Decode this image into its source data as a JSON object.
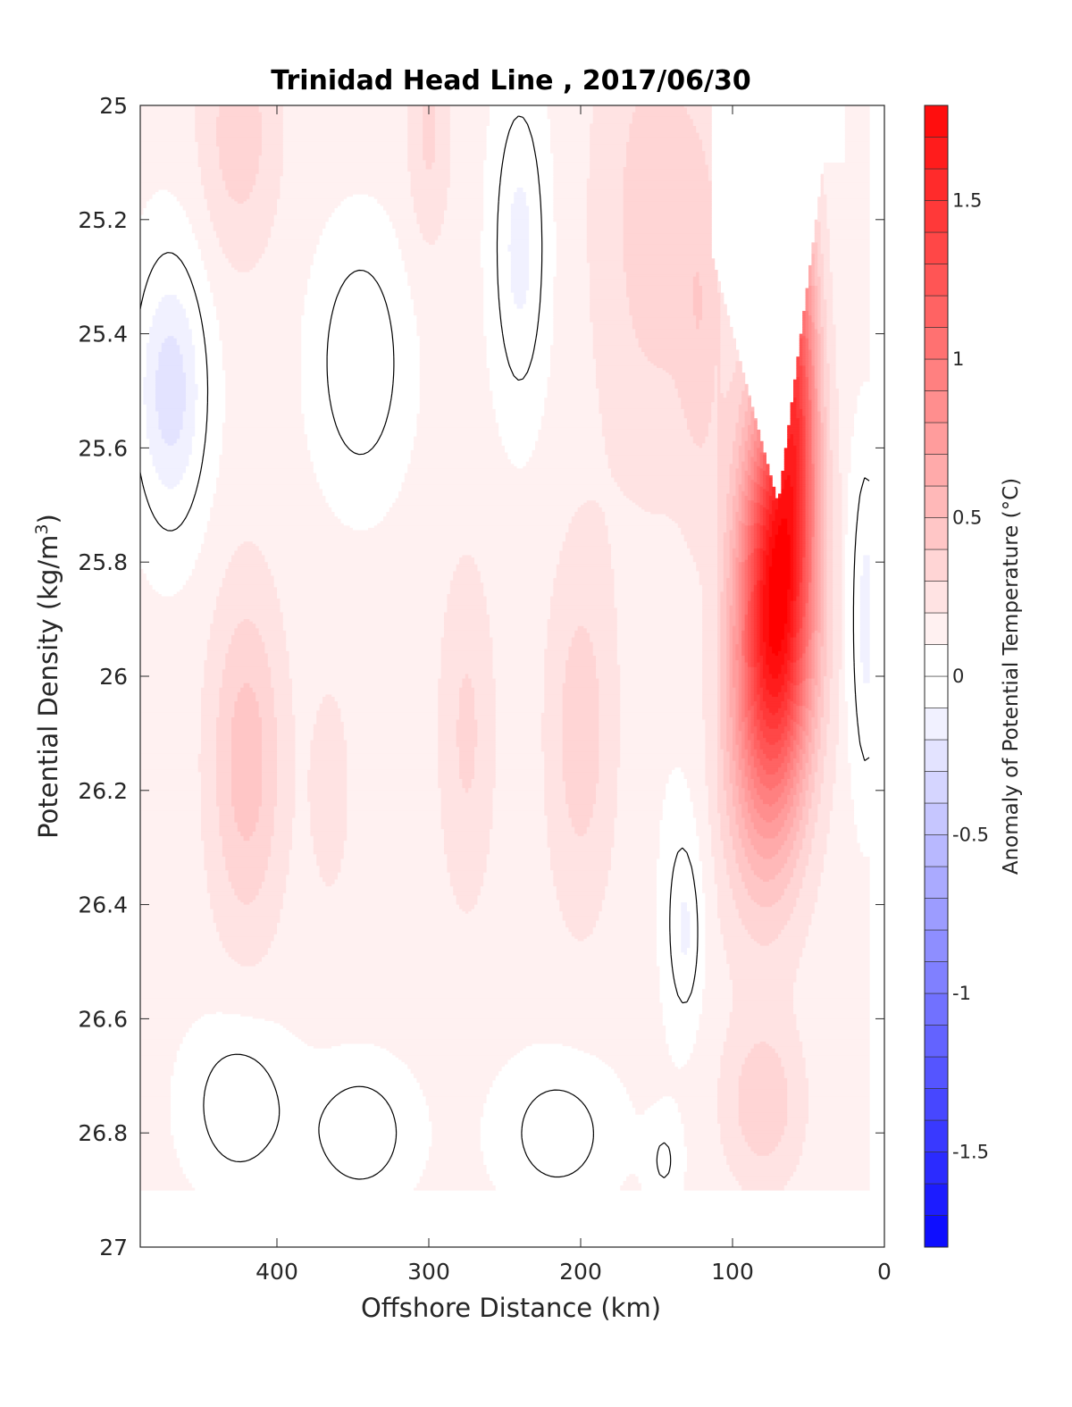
{
  "chart_data": {
    "type": "heatmap",
    "title": "Trinidad Head Line , 2017/06/30",
    "xlabel": "Offshore Distance (km)",
    "ylabel_parts": {
      "base": "Potential Density (kg/m",
      "sup": "3",
      "end": ")"
    },
    "xlim": [
      490,
      0
    ],
    "x_reversed": true,
    "ylim": [
      25,
      27
    ],
    "y_reversed": true,
    "x_ticks": [
      400,
      300,
      200,
      100,
      0
    ],
    "x_tick_labels": [
      "400",
      "300",
      "200",
      "100",
      "0"
    ],
    "y_ticks": [
      25,
      25.2,
      25.4,
      25.6,
      25.8,
      26,
      26.2,
      26.4,
      26.6,
      26.8,
      27
    ],
    "y_tick_labels": [
      "25",
      "25.2",
      "25.4",
      "25.6",
      "25.8",
      "26",
      "26.2",
      "26.4",
      "26.6",
      "26.8",
      "27"
    ],
    "data_extent": {
      "x": [
        490,
        10
      ],
      "y": [
        25,
        26.9
      ]
    },
    "x_nodes": [
      490,
      470,
      450,
      430,
      410,
      390,
      370,
      350,
      330,
      310,
      290,
      270,
      250,
      230,
      210,
      190,
      170,
      150,
      130,
      110,
      90,
      70,
      50,
      30,
      10
    ],
    "y_nodes": [
      25.0,
      25.1,
      25.2,
      25.3,
      25.4,
      25.5,
      25.6,
      25.7,
      25.8,
      25.9,
      26.0,
      26.1,
      26.2,
      26.3,
      26.4,
      26.5,
      26.6,
      26.7,
      26.8,
      26.9
    ],
    "colorbar": {
      "label": "Anomaly of Potential Temperature (°C)",
      "range": [
        -1.8,
        1.8
      ],
      "step": 0.1,
      "ticks": [
        -1.5,
        -1,
        -0.5,
        0,
        0.5,
        1,
        1.5
      ],
      "tick_labels": [
        "-1.5",
        "-1",
        "-0.5",
        "0",
        "0.5",
        "1",
        "1.5"
      ],
      "negative_color": "#0000ff",
      "positive_color": "#ff0000",
      "neutral_color": "#ffffff"
    },
    "contour_level": 0,
    "contour_color": "#000000"
  }
}
